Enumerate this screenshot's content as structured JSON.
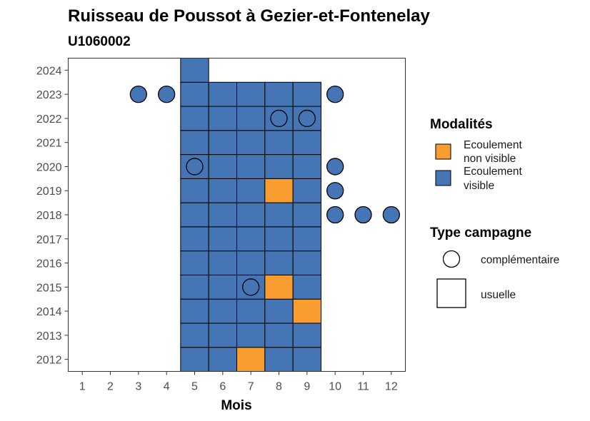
{
  "chart_data": {
    "type": "heatmap",
    "title": "Ruisseau de Poussot à Gezier-et-Fontenelay",
    "subtitle": "U1060002",
    "xlabel": "Mois",
    "ylabel": "",
    "x_ticks": [
      1,
      2,
      3,
      4,
      5,
      6,
      7,
      8,
      9,
      10,
      11,
      12
    ],
    "y_ticks": [
      2012,
      2013,
      2014,
      2015,
      2016,
      2017,
      2018,
      2019,
      2020,
      2021,
      2022,
      2023,
      2024
    ],
    "xlim": [
      0.5,
      12.5
    ],
    "ylim": [
      2011.5,
      2024.5
    ],
    "grid": false,
    "legend_position": "right",
    "colors": {
      "ecoulement_visible": "#4575b4",
      "ecoulement_non_visible": "#f99d31"
    },
    "legend": {
      "modalites_title": "Modalités",
      "modalites": [
        {
          "key": "ecoulement_non_visible",
          "line1": "Ecoulement",
          "line2": "non visible"
        },
        {
          "key": "ecoulement_visible",
          "line1": "Ecoulement",
          "line2": "visible"
        }
      ],
      "campagne_title": "Type campagne",
      "campagne": [
        {
          "key": "complementaire",
          "label": "complémentaire"
        },
        {
          "key": "usuelle",
          "label": "usuelle"
        }
      ]
    },
    "usuelle": [
      {
        "year": 2012,
        "month": 5,
        "modalite": "ecoulement_visible"
      },
      {
        "year": 2012,
        "month": 6,
        "modalite": "ecoulement_visible"
      },
      {
        "year": 2012,
        "month": 7,
        "modalite": "ecoulement_non_visible"
      },
      {
        "year": 2012,
        "month": 8,
        "modalite": "ecoulement_visible"
      },
      {
        "year": 2012,
        "month": 9,
        "modalite": "ecoulement_visible"
      },
      {
        "year": 2013,
        "month": 5,
        "modalite": "ecoulement_visible"
      },
      {
        "year": 2013,
        "month": 6,
        "modalite": "ecoulement_visible"
      },
      {
        "year": 2013,
        "month": 7,
        "modalite": "ecoulement_visible"
      },
      {
        "year": 2013,
        "month": 8,
        "modalite": "ecoulement_visible"
      },
      {
        "year": 2013,
        "month": 9,
        "modalite": "ecoulement_visible"
      },
      {
        "year": 2014,
        "month": 5,
        "modalite": "ecoulement_visible"
      },
      {
        "year": 2014,
        "month": 6,
        "modalite": "ecoulement_visible"
      },
      {
        "year": 2014,
        "month": 7,
        "modalite": "ecoulement_visible"
      },
      {
        "year": 2014,
        "month": 8,
        "modalite": "ecoulement_visible"
      },
      {
        "year": 2014,
        "month": 9,
        "modalite": "ecoulement_non_visible"
      },
      {
        "year": 2015,
        "month": 5,
        "modalite": "ecoulement_visible"
      },
      {
        "year": 2015,
        "month": 6,
        "modalite": "ecoulement_visible"
      },
      {
        "year": 2015,
        "month": 7,
        "modalite": "ecoulement_visible"
      },
      {
        "year": 2015,
        "month": 8,
        "modalite": "ecoulement_non_visible"
      },
      {
        "year": 2015,
        "month": 9,
        "modalite": "ecoulement_visible"
      },
      {
        "year": 2016,
        "month": 5,
        "modalite": "ecoulement_visible"
      },
      {
        "year": 2016,
        "month": 6,
        "modalite": "ecoulement_visible"
      },
      {
        "year": 2016,
        "month": 7,
        "modalite": "ecoulement_visible"
      },
      {
        "year": 2016,
        "month": 8,
        "modalite": "ecoulement_visible"
      },
      {
        "year": 2016,
        "month": 9,
        "modalite": "ecoulement_visible"
      },
      {
        "year": 2017,
        "month": 5,
        "modalite": "ecoulement_visible"
      },
      {
        "year": 2017,
        "month": 6,
        "modalite": "ecoulement_visible"
      },
      {
        "year": 2017,
        "month": 7,
        "modalite": "ecoulement_visible"
      },
      {
        "year": 2017,
        "month": 8,
        "modalite": "ecoulement_visible"
      },
      {
        "year": 2017,
        "month": 9,
        "modalite": "ecoulement_visible"
      },
      {
        "year": 2018,
        "month": 5,
        "modalite": "ecoulement_visible"
      },
      {
        "year": 2018,
        "month": 6,
        "modalite": "ecoulement_visible"
      },
      {
        "year": 2018,
        "month": 7,
        "modalite": "ecoulement_visible"
      },
      {
        "year": 2018,
        "month": 8,
        "modalite": "ecoulement_visible"
      },
      {
        "year": 2018,
        "month": 9,
        "modalite": "ecoulement_visible"
      },
      {
        "year": 2019,
        "month": 5,
        "modalite": "ecoulement_visible"
      },
      {
        "year": 2019,
        "month": 6,
        "modalite": "ecoulement_visible"
      },
      {
        "year": 2019,
        "month": 7,
        "modalite": "ecoulement_visible"
      },
      {
        "year": 2019,
        "month": 8,
        "modalite": "ecoulement_non_visible"
      },
      {
        "year": 2019,
        "month": 9,
        "modalite": "ecoulement_visible"
      },
      {
        "year": 2020,
        "month": 5,
        "modalite": "ecoulement_visible"
      },
      {
        "year": 2020,
        "month": 6,
        "modalite": "ecoulement_visible"
      },
      {
        "year": 2020,
        "month": 7,
        "modalite": "ecoulement_visible"
      },
      {
        "year": 2020,
        "month": 8,
        "modalite": "ecoulement_visible"
      },
      {
        "year": 2020,
        "month": 9,
        "modalite": "ecoulement_visible"
      },
      {
        "year": 2021,
        "month": 5,
        "modalite": "ecoulement_visible"
      },
      {
        "year": 2021,
        "month": 6,
        "modalite": "ecoulement_visible"
      },
      {
        "year": 2021,
        "month": 7,
        "modalite": "ecoulement_visible"
      },
      {
        "year": 2021,
        "month": 8,
        "modalite": "ecoulement_visible"
      },
      {
        "year": 2021,
        "month": 9,
        "modalite": "ecoulement_visible"
      },
      {
        "year": 2022,
        "month": 5,
        "modalite": "ecoulement_visible"
      },
      {
        "year": 2022,
        "month": 6,
        "modalite": "ecoulement_visible"
      },
      {
        "year": 2022,
        "month": 7,
        "modalite": "ecoulement_visible"
      },
      {
        "year": 2022,
        "month": 8,
        "modalite": "ecoulement_visible"
      },
      {
        "year": 2022,
        "month": 9,
        "modalite": "ecoulement_visible"
      },
      {
        "year": 2023,
        "month": 5,
        "modalite": "ecoulement_visible"
      },
      {
        "year": 2023,
        "month": 6,
        "modalite": "ecoulement_visible"
      },
      {
        "year": 2023,
        "month": 7,
        "modalite": "ecoulement_visible"
      },
      {
        "year": 2023,
        "month": 8,
        "modalite": "ecoulement_visible"
      },
      {
        "year": 2023,
        "month": 9,
        "modalite": "ecoulement_visible"
      },
      {
        "year": 2024,
        "month": 5,
        "modalite": "ecoulement_visible"
      }
    ],
    "complementaire": [
      {
        "year": 2015,
        "month": 7,
        "modalite": "none"
      },
      {
        "year": 2018,
        "month": 10,
        "modalite": "ecoulement_visible"
      },
      {
        "year": 2018,
        "month": 11,
        "modalite": "ecoulement_visible"
      },
      {
        "year": 2018,
        "month": 12,
        "modalite": "ecoulement_visible"
      },
      {
        "year": 2019,
        "month": 10,
        "modalite": "ecoulement_visible"
      },
      {
        "year": 2020,
        "month": 5,
        "modalite": "none"
      },
      {
        "year": 2020,
        "month": 10,
        "modalite": "ecoulement_visible"
      },
      {
        "year": 2022,
        "month": 8,
        "modalite": "none"
      },
      {
        "year": 2022,
        "month": 9,
        "modalite": "none"
      },
      {
        "year": 2023,
        "month": 3,
        "modalite": "ecoulement_visible"
      },
      {
        "year": 2023,
        "month": 4,
        "modalite": "ecoulement_visible"
      },
      {
        "year": 2023,
        "month": 10,
        "modalite": "ecoulement_visible"
      }
    ]
  }
}
